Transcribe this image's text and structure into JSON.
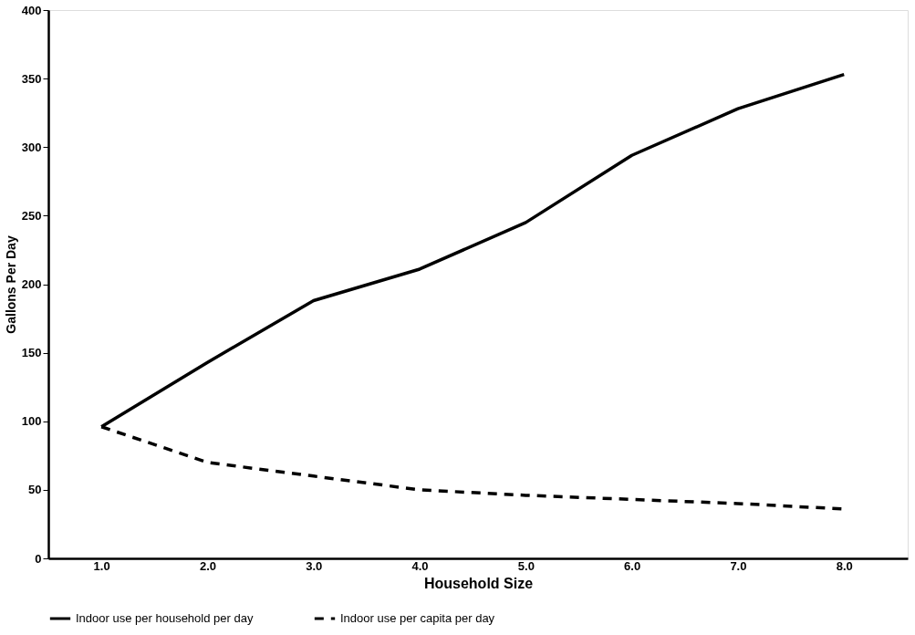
{
  "chart_data": {
    "type": "line",
    "xlabel": "Household Size",
    "ylabel": "Gallons Per Day",
    "x": [
      1,
      2,
      3,
      4,
      5,
      6,
      7,
      8
    ],
    "series": [
      {
        "name": "Indoor use per household per day",
        "color": "#000000",
        "line_style": "solid",
        "values": [
          96,
          143,
          188,
          211,
          245,
          294,
          328,
          353
        ]
      },
      {
        "name": "Indoor use per capita per day",
        "color": "#000000",
        "line_style": "dashed",
        "values": [
          96,
          70,
          60,
          50,
          46,
          43,
          40,
          36
        ]
      }
    ],
    "xlim": [
      0.5,
      8.6
    ],
    "ylim": [
      0,
      400
    ],
    "xticks": [
      {
        "value": 1,
        "label": "1.0"
      },
      {
        "value": 2,
        "label": "2.0"
      },
      {
        "value": 3,
        "label": "3.0"
      },
      {
        "value": 4,
        "label": "4.0"
      },
      {
        "value": 5,
        "label": "5.0"
      },
      {
        "value": 6,
        "label": "6.0"
      },
      {
        "value": 7,
        "label": "7.0"
      },
      {
        "value": 8,
        "label": "8.0"
      }
    ],
    "yticks": [
      0,
      50,
      100,
      150,
      200,
      250,
      300,
      350,
      400
    ],
    "grid": false,
    "legend": "bottom",
    "marker": "none"
  }
}
